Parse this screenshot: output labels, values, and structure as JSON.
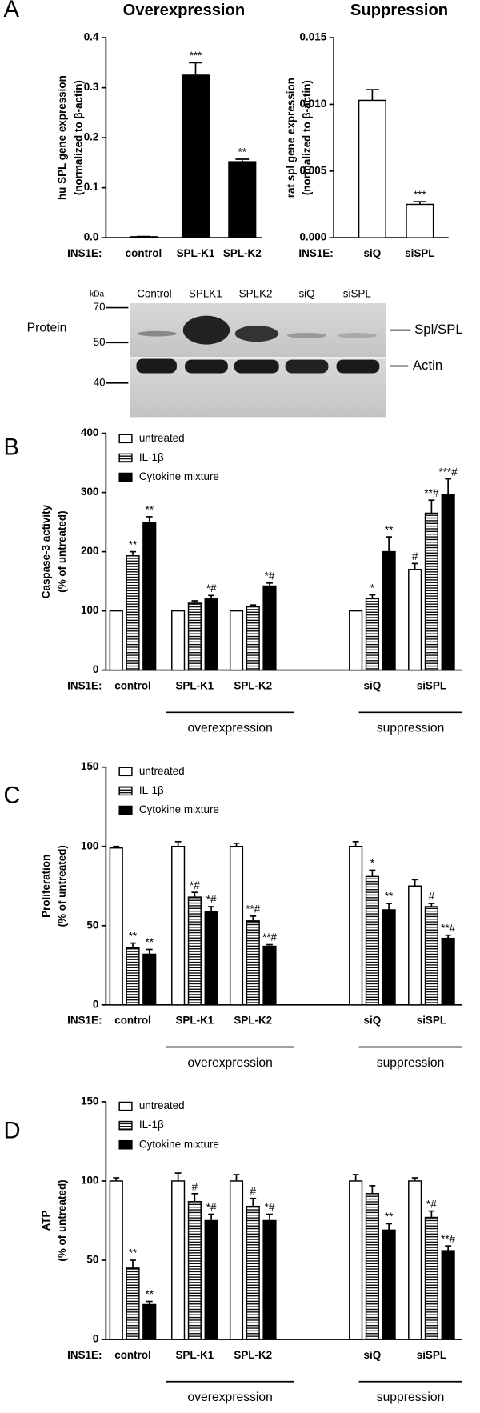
{
  "blot": {
    "kda": "kDa",
    "markers": [
      "70",
      "50",
      "40"
    ],
    "row_label": "Protein",
    "lanes": [
      "Control",
      "SPLK1",
      "SPLK2",
      "siQ",
      "siSPL"
    ],
    "bands": [
      "Spl/SPL",
      "Actin"
    ]
  },
  "chart_data": [
    {
      "type": "bar",
      "panel": "A",
      "title": "Overexpression",
      "ylabel": [
        "hu SPL gene expression",
        "(normalized to β-actin)"
      ],
      "x_prefix": "INS1E:",
      "categories": [
        "control",
        "SPL-K1",
        "SPL-K2"
      ],
      "values": [
        0.002,
        0.325,
        0.152
      ],
      "errors": [
        0.0005,
        0.025,
        0.005
      ],
      "annotations": [
        null,
        "***",
        "**"
      ],
      "color": "#000000",
      "ylim": [
        0,
        0.4
      ],
      "yticks": [
        {
          "value": 0,
          "label": "0.0"
        },
        0.1,
        0.2,
        0.3,
        0.4
      ]
    },
    {
      "type": "bar",
      "title": "Suppression",
      "ylabel": [
        "rat spl gene expression",
        "(normalized to β-actin)"
      ],
      "x_prefix": "INS1E:",
      "categories": [
        "siQ",
        "siSPL"
      ],
      "values": [
        0.0103,
        0.0025
      ],
      "errors": [
        0.0008,
        0.0002
      ],
      "annotations": [
        null,
        "***"
      ],
      "color": "#ffffff",
      "ylim": [
        0,
        0.015
      ],
      "yticks": [
        {
          "value": 0,
          "label": "0.000"
        },
        0.005,
        {
          "value": 0.01,
          "label": "0.010"
        },
        0.015
      ]
    },
    {
      "type": "grouped-bar",
      "panel": "B",
      "ylabel": [
        "Caspase-3 activity",
        "(% of untreated)"
      ],
      "x_prefix": "INS1E:",
      "categories": [
        "control",
        "SPL-K1",
        "SPL-K2",
        "siQ",
        "siSPL"
      ],
      "group_labels": [
        "overexpression",
        "suppression"
      ],
      "series": [
        {
          "name": "untreated",
          "color": "#ffffff",
          "hatch": false,
          "values": [
            100,
            100,
            100,
            100,
            170
          ],
          "errors": [
            1,
            1,
            1,
            1,
            10
          ],
          "annotations": [
            null,
            null,
            null,
            null,
            "#"
          ]
        },
        {
          "name": "IL-1β",
          "color": "#ffffff",
          "hatch": true,
          "values": [
            193,
            113,
            107,
            121,
            265
          ],
          "errors": [
            7,
            4,
            3,
            6,
            22
          ],
          "annotations": [
            "**",
            null,
            null,
            "*",
            "**#"
          ]
        },
        {
          "name": "Cytokine mixture",
          "color": "#000000",
          "hatch": false,
          "values": [
            249,
            120,
            142,
            200,
            296
          ],
          "errors": [
            10,
            6,
            5,
            25,
            27
          ],
          "annotations": [
            "**",
            "*#",
            "*#",
            "**",
            "***#"
          ]
        }
      ],
      "ylim": [
        0,
        400
      ],
      "yticks": [
        0,
        100,
        200,
        300,
        400
      ]
    },
    {
      "type": "grouped-bar",
      "panel": "C",
      "ylabel": [
        "Proliferation",
        "(% of untreated)"
      ],
      "x_prefix": "INS1E:",
      "categories": [
        "control",
        "SPL-K1",
        "SPL-K2",
        "siQ",
        "siSPL"
      ],
      "group_labels": [
        "overexpression",
        "suppression"
      ],
      "series": [
        {
          "name": "untreated",
          "color": "#ffffff",
          "hatch": false,
          "values": [
            99,
            100,
            100,
            100,
            75
          ],
          "errors": [
            1,
            3,
            2,
            3,
            4
          ],
          "annotations": [
            null,
            null,
            null,
            null,
            null
          ]
        },
        {
          "name": "IL-1β",
          "color": "#ffffff",
          "hatch": true,
          "values": [
            36,
            68,
            53,
            81,
            62
          ],
          "errors": [
            3,
            3,
            3,
            4,
            2
          ],
          "annotations": [
            "**",
            "*#",
            "**#",
            "*",
            "#"
          ]
        },
        {
          "name": "Cytokine mixture",
          "color": "#000000",
          "hatch": false,
          "values": [
            32,
            59,
            37,
            60,
            42
          ],
          "errors": [
            3,
            3,
            1,
            4,
            2
          ],
          "annotations": [
            "**",
            "*#",
            "**#",
            "**",
            "**#"
          ]
        }
      ],
      "ylim": [
        0,
        150
      ],
      "yticks": [
        0,
        50,
        100,
        150
      ]
    },
    {
      "type": "grouped-bar",
      "panel": "D",
      "ylabel": [
        "ATP",
        "(% of untreated)"
      ],
      "x_prefix": "INS1E:",
      "categories": [
        "control",
        "SPL-K1",
        "SPL-K2",
        "siQ",
        "siSPL"
      ],
      "group_labels": [
        "overexpression",
        "suppression"
      ],
      "series": [
        {
          "name": "untreated",
          "color": "#ffffff",
          "hatch": false,
          "values": [
            100,
            100,
            100,
            100,
            100
          ],
          "errors": [
            2,
            5,
            4,
            4,
            2
          ],
          "annotations": [
            null,
            null,
            null,
            null,
            null
          ]
        },
        {
          "name": "IL-1β",
          "color": "#ffffff",
          "hatch": true,
          "values": [
            45,
            87,
            84,
            92,
            77
          ],
          "errors": [
            5,
            5,
            5,
            5,
            4
          ],
          "annotations": [
            "**",
            "#",
            "#",
            null,
            "*#"
          ]
        },
        {
          "name": "Cytokine mixture",
          "color": "#000000",
          "hatch": false,
          "values": [
            22,
            75,
            75,
            69,
            56
          ],
          "errors": [
            2,
            4,
            4,
            4,
            3
          ],
          "annotations": [
            "**",
            "*#",
            "*#",
            "**",
            "**#"
          ]
        }
      ],
      "ylim": [
        0,
        150
      ],
      "yticks": [
        0,
        50,
        100,
        150
      ]
    }
  ]
}
